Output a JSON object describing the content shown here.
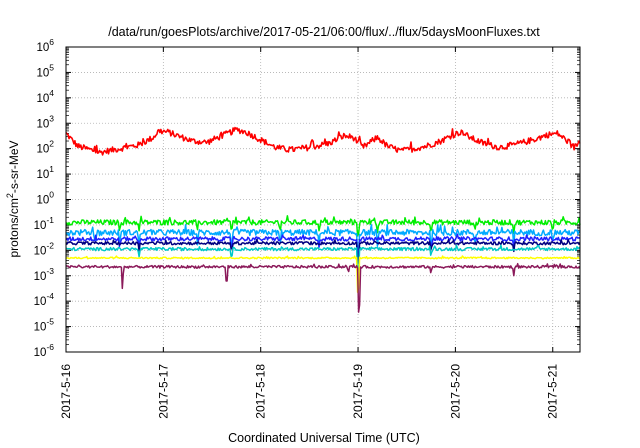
{
  "chart_data": {
    "type": "line",
    "title": "/data/run/goesPlots/archive/2017-05-21/06:00/flux/../flux/5daysMoonFluxes.txt",
    "xlabel": "Coordinated Universal Time (UTC)",
    "ylabel_parts": [
      "protons/cm",
      "2",
      "-s-sr-MeV"
    ],
    "y_scale": "log",
    "ylim_exp": [
      -6,
      6
    ],
    "y_ticks": [
      {
        "exp": "-6"
      },
      {
        "exp": "-5"
      },
      {
        "exp": "-4"
      },
      {
        "exp": "-3"
      },
      {
        "exp": "-2"
      },
      {
        "exp": "-1"
      },
      {
        "exp": "0"
      },
      {
        "exp": "1"
      },
      {
        "exp": "2"
      },
      {
        "exp": "3"
      },
      {
        "exp": "4"
      },
      {
        "exp": "5"
      },
      {
        "exp": "6"
      }
    ],
    "y_tick_base": "10",
    "xlim_days": [
      0,
      5.28
    ],
    "x_ticks": [
      {
        "day": 0,
        "label": "2017-5-16"
      },
      {
        "day": 1,
        "label": "2017-5-17"
      },
      {
        "day": 2,
        "label": "2017-5-18"
      },
      {
        "day": 3,
        "label": "2017-5-19"
      },
      {
        "day": 4,
        "label": "2017-5-20"
      },
      {
        "day": 5,
        "label": "2017-5-21"
      }
    ],
    "grid": true,
    "series": [
      {
        "color": "#ff0000",
        "base_log": 2.1,
        "noise": 0.12,
        "knots": [
          [
            0.0,
            2.6
          ],
          [
            0.12,
            2.1
          ],
          [
            0.35,
            1.85
          ],
          [
            0.55,
            2.0
          ],
          [
            0.75,
            2.15
          ],
          [
            0.9,
            2.45
          ],
          [
            0.95,
            2.7
          ],
          [
            1.05,
            2.65
          ],
          [
            1.15,
            2.5
          ],
          [
            1.3,
            2.3
          ],
          [
            1.45,
            2.25
          ],
          [
            1.6,
            2.5
          ],
          [
            1.75,
            2.75
          ],
          [
            1.85,
            2.65
          ],
          [
            2.0,
            2.35
          ],
          [
            2.15,
            2.05
          ],
          [
            2.3,
            1.95
          ],
          [
            2.5,
            2.05
          ],
          [
            2.7,
            2.2
          ],
          [
            2.85,
            2.5
          ],
          [
            2.95,
            2.45
          ],
          [
            3.05,
            2.05
          ],
          [
            3.2,
            2.45
          ],
          [
            3.3,
            2.1
          ],
          [
            3.45,
            1.9
          ],
          [
            3.7,
            2.1
          ],
          [
            3.85,
            2.3
          ],
          [
            3.95,
            2.5
          ],
          [
            4.05,
            2.65
          ],
          [
            4.2,
            2.35
          ],
          [
            4.3,
            2.2
          ],
          [
            4.45,
            2.05
          ],
          [
            4.6,
            2.15
          ],
          [
            4.8,
            2.35
          ],
          [
            4.95,
            2.55
          ],
          [
            5.05,
            2.6
          ],
          [
            5.15,
            2.3
          ],
          [
            5.22,
            2.05
          ],
          [
            5.28,
            2.3
          ]
        ],
        "dips": []
      },
      {
        "color": "#00ee00",
        "base_log": -0.92,
        "noise": 0.1,
        "knots": [
          [
            0,
            -0.9
          ],
          [
            5.28,
            -0.9
          ]
        ],
        "dips": [
          [
            0.55,
            -1.25
          ],
          [
            0.75,
            -1.3
          ],
          [
            1.35,
            -1.2
          ],
          [
            1.7,
            -1.35
          ],
          [
            2.2,
            -1.3
          ],
          [
            2.6,
            -1.25
          ],
          [
            3.0,
            -1.7
          ],
          [
            3.2,
            -1.35
          ],
          [
            3.75,
            -1.35
          ],
          [
            4.2,
            -1.3
          ],
          [
            4.6,
            -1.35
          ],
          [
            5.0,
            -1.3
          ]
        ]
      },
      {
        "color": "#00aaff",
        "base_log": -1.3,
        "noise": 0.12,
        "knots": [
          [
            0,
            -1.3
          ],
          [
            5.28,
            -1.3
          ]
        ],
        "dips": [
          [
            0.3,
            -1.8
          ],
          [
            0.55,
            -1.75
          ],
          [
            0.75,
            -1.9
          ],
          [
            1.35,
            -1.8
          ],
          [
            1.7,
            -2.0
          ],
          [
            2.2,
            -1.85
          ],
          [
            2.6,
            -1.8
          ],
          [
            3.0,
            -2.6
          ],
          [
            3.2,
            -1.9
          ],
          [
            3.75,
            -2.0
          ],
          [
            4.2,
            -1.85
          ],
          [
            4.6,
            -1.9
          ],
          [
            5.0,
            -1.8
          ]
        ]
      },
      {
        "color": "#2020ff",
        "base_log": -1.55,
        "noise": 0.08,
        "knots": [
          [
            0,
            -1.55
          ],
          [
            5.28,
            -1.55
          ]
        ],
        "dips": [
          [
            0.55,
            -1.9
          ],
          [
            0.75,
            -2.0
          ],
          [
            1.7,
            -2.1
          ],
          [
            2.6,
            -1.9
          ],
          [
            3.0,
            -2.8
          ],
          [
            3.75,
            -2.1
          ],
          [
            4.6,
            -2.0
          ]
        ]
      },
      {
        "color": "#000080",
        "base_log": -1.72,
        "noise": 0.06,
        "knots": [
          [
            0,
            -1.72
          ],
          [
            5.28,
            -1.72
          ]
        ],
        "dips": [
          [
            0.75,
            -2.05
          ],
          [
            1.7,
            -2.1
          ],
          [
            3.0,
            -3.0
          ],
          [
            3.75,
            -2.1
          ],
          [
            4.6,
            -2.05
          ]
        ]
      },
      {
        "color": "#00c8c8",
        "base_log": -1.95,
        "noise": 0.06,
        "knots": [
          [
            0,
            -1.95
          ],
          [
            5.28,
            -1.95
          ]
        ],
        "dips": [
          [
            0.75,
            -2.3
          ],
          [
            1.7,
            -2.4
          ],
          [
            3.0,
            -3.5
          ],
          [
            3.75,
            -2.3
          ]
        ]
      },
      {
        "color": "#ffff00",
        "base_log": -2.3,
        "noise": 0.03,
        "knots": [
          [
            0,
            -2.3
          ],
          [
            5.28,
            -2.3
          ]
        ],
        "dips": [
          [
            3.0,
            -4.5
          ]
        ]
      },
      {
        "color": "#8b1a5a",
        "base_log": -2.65,
        "noise": 0.05,
        "knots": [
          [
            0,
            -2.65
          ],
          [
            5.28,
            -2.65
          ]
        ],
        "dips": [
          [
            0.58,
            -3.6
          ],
          [
            1.65,
            -3.6
          ],
          [
            3.01,
            -5.5
          ],
          [
            3.75,
            -2.95
          ],
          [
            4.6,
            -3.0
          ],
          [
            2.9,
            -2.9
          ]
        ]
      }
    ]
  }
}
